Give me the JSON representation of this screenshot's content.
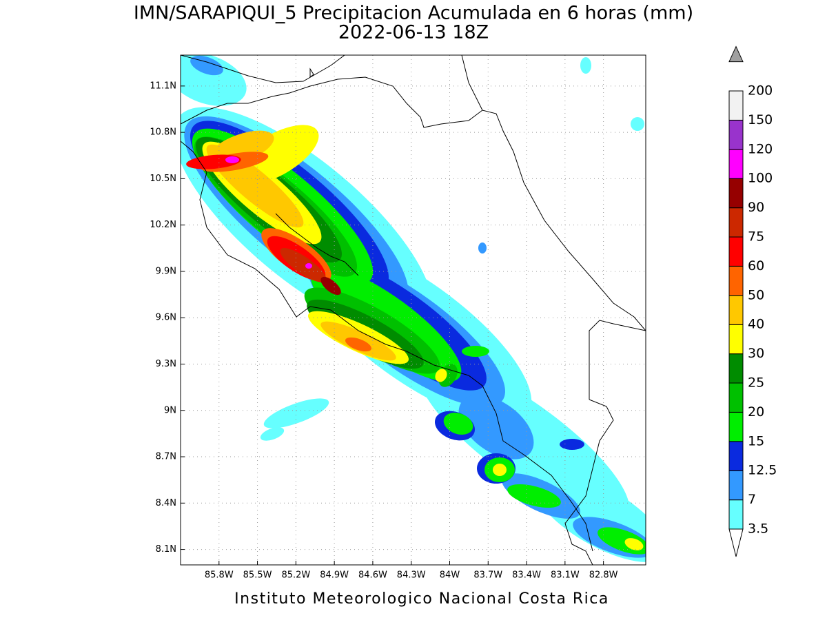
{
  "chart_data": {
    "type": "map",
    "title": "IMN/SARAPIQUI_5 Precipitacion Acumulada en 6 horas (mm)",
    "subtitle": "2022-06-13 18Z",
    "footer": "Instituto Meteorologico Nacional Costa Rica",
    "xlim": [
      -86.1,
      -82.47
    ],
    "ylim": [
      8.0,
      11.3
    ],
    "xticks": [
      {
        "value": -85.8,
        "label": "85.8W"
      },
      {
        "value": -85.5,
        "label": "85.5W"
      },
      {
        "value": -85.2,
        "label": "85.2W"
      },
      {
        "value": -84.9,
        "label": "84.9W"
      },
      {
        "value": -84.6,
        "label": "84.6W"
      },
      {
        "value": -84.3,
        "label": "84.3W"
      },
      {
        "value": -84,
        "label": "84W"
      },
      {
        "value": -83.7,
        "label": "83.7W"
      },
      {
        "value": -83.4,
        "label": "83.4W"
      },
      {
        "value": -83.1,
        "label": "83.1W"
      },
      {
        "value": -82.8,
        "label": "82.8W"
      }
    ],
    "yticks": [
      {
        "value": 8.1,
        "label": "8.1N"
      },
      {
        "value": 8.4,
        "label": "8.4N"
      },
      {
        "value": 8.7,
        "label": "8.7N"
      },
      {
        "value": 9,
        "label": "9N"
      },
      {
        "value": 9.3,
        "label": "9.3N"
      },
      {
        "value": 9.6,
        "label": "9.6N"
      },
      {
        "value": 9.9,
        "label": "9.9N"
      },
      {
        "value": 10.2,
        "label": "10.2N"
      },
      {
        "value": 10.5,
        "label": "10.5N"
      },
      {
        "value": 10.8,
        "label": "10.8N"
      },
      {
        "value": 11.1,
        "label": "11.1N"
      }
    ],
    "grid": true,
    "colorbar": {
      "levels": [
        3.5,
        7,
        12.5,
        15,
        20,
        25,
        30,
        40,
        50,
        60,
        75,
        90,
        100,
        120,
        150,
        200
      ],
      "colors": [
        "#66ffff",
        "#3399ff",
        "#0a2adf",
        "#00ee00",
        "#00c000",
        "#008c00",
        "#ffff00",
        "#ffc800",
        "#ff6400",
        "#ff0000",
        "#cc2800",
        "#960000",
        "#ff00ff",
        "#9933cc",
        "#f2f2f2"
      ],
      "over_color": "#a0a0a0",
      "under_color": "#ffffff"
    }
  }
}
